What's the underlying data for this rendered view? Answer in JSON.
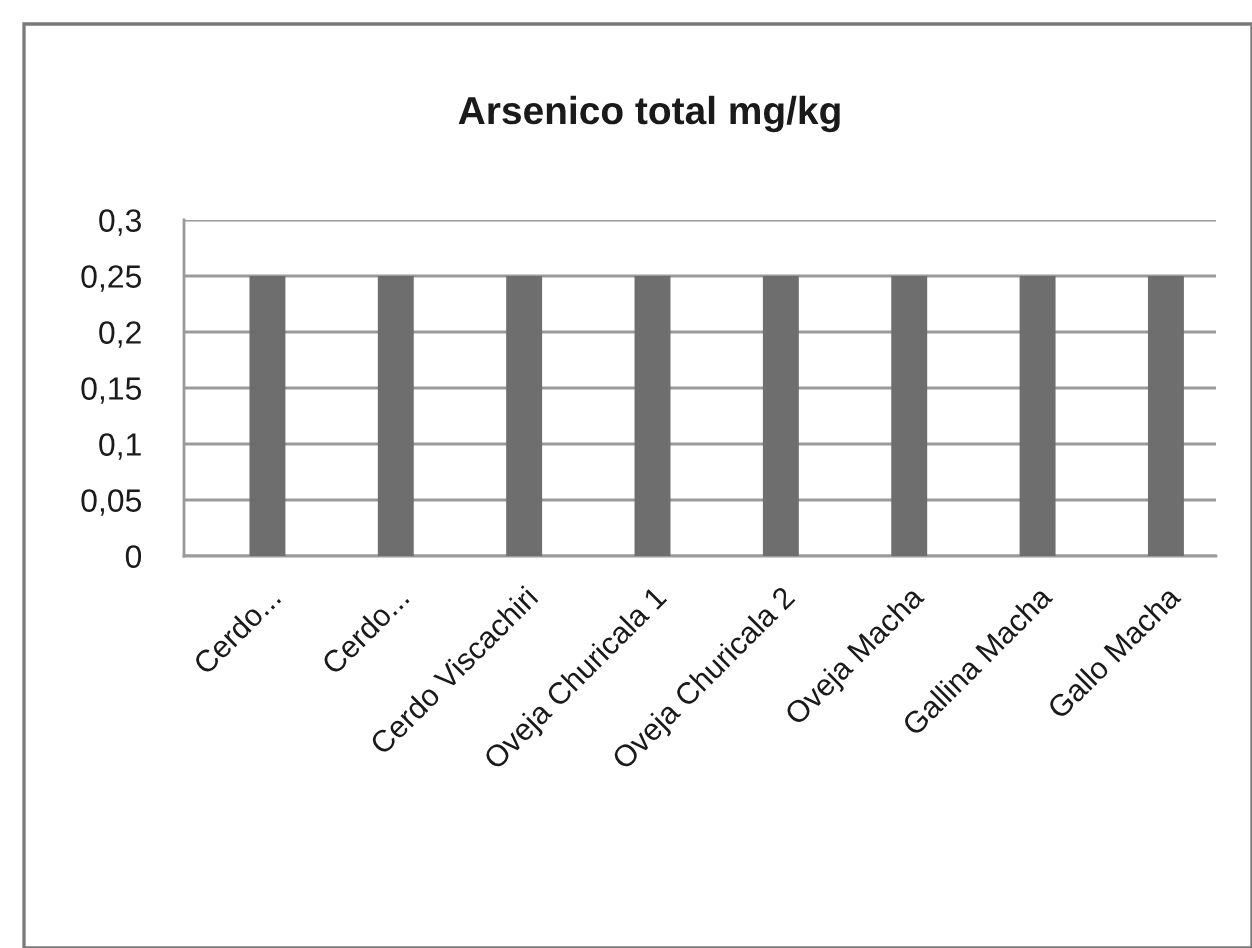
{
  "chart_data": {
    "type": "bar",
    "title": "Arsenico total mg/kg",
    "categories": [
      "Cerdo...",
      "Cerdo...",
      "Cerdo Viscachiri",
      "Oveja Churicala 1",
      "Oveja Churicala 2",
      "Oveja Macha",
      "Gallina Macha",
      "Gallo Macha"
    ],
    "values": [
      0.25,
      0.25,
      0.25,
      0.25,
      0.25,
      0.25,
      0.25,
      0.25
    ],
    "color": "#6e6e6e",
    "ylim": [
      0,
      0.3
    ],
    "yticks": [
      0,
      {
        "value": 0.05,
        "label": "0,05"
      },
      {
        "value": 0.1,
        "label": "0,1"
      },
      {
        "value": 0.15,
        "label": "0,15"
      },
      {
        "value": 0.2,
        "label": "0,2"
      },
      {
        "value": 0.25,
        "label": "0,25"
      },
      {
        "value": 0.3,
        "label": "0,3"
      }
    ],
    "grid": "y"
  }
}
